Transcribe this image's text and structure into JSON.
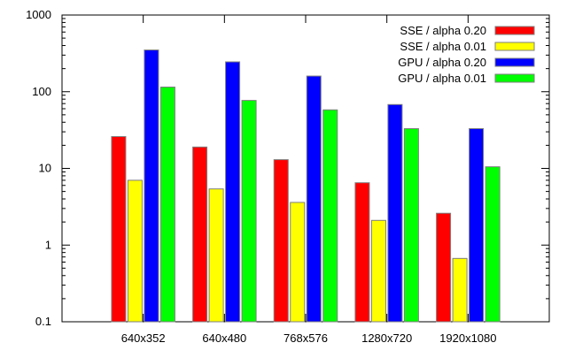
{
  "chart_data": {
    "type": "bar",
    "title": "",
    "xlabel": "",
    "ylabel": "",
    "yscale": "log",
    "ylim": [
      0.1,
      1000
    ],
    "y_ticks": [
      "0.1",
      "1",
      "10",
      "100",
      "1000"
    ],
    "legend_position": "top-right",
    "grid": false,
    "categories": [
      "640x352",
      "640x480",
      "768x576",
      "1280x720",
      "1920x1080"
    ],
    "series": [
      {
        "name": "SSE / alpha 0.20",
        "color": "#ff0000",
        "values": [
          26,
          19,
          13,
          6.5,
          2.6
        ]
      },
      {
        "name": "SSE / alpha 0.01",
        "color": "#ffff00",
        "values": [
          7.0,
          5.4,
          3.6,
          2.1,
          0.67
        ]
      },
      {
        "name": "GPU / alpha 0.20",
        "color": "#0000ff",
        "values": [
          350,
          245,
          160,
          68,
          33
        ]
      },
      {
        "name": "GPU / alpha 0.01",
        "color": "#00ff00",
        "values": [
          115,
          77,
          58,
          33,
          10.5
        ]
      }
    ]
  }
}
